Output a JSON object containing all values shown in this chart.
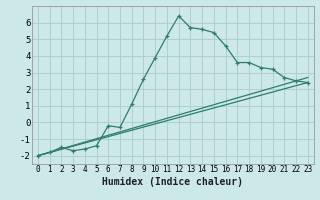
{
  "xlabel": "Humidex (Indice chaleur)",
  "background_color": "#cce8e8",
  "grid_color": "#aed0d0",
  "line_color": "#2e7d6e",
  "xlim": [
    -0.5,
    23.5
  ],
  "ylim": [
    -2.5,
    7.0
  ],
  "yticks": [
    -2,
    -1,
    0,
    1,
    2,
    3,
    4,
    5,
    6
  ],
  "xticks": [
    0,
    1,
    2,
    3,
    4,
    5,
    6,
    7,
    8,
    9,
    10,
    11,
    12,
    13,
    14,
    15,
    16,
    17,
    18,
    19,
    20,
    21,
    22,
    23
  ],
  "series": [
    [
      0,
      -2.0
    ],
    [
      1,
      -1.8
    ],
    [
      2,
      -1.5
    ],
    [
      3,
      -1.7
    ],
    [
      4,
      -1.6
    ],
    [
      5,
      -1.4
    ],
    [
      6,
      -0.2
    ],
    [
      7,
      -0.3
    ],
    [
      8,
      1.1
    ],
    [
      9,
      2.6
    ],
    [
      10,
      3.9
    ],
    [
      11,
      5.2
    ],
    [
      12,
      6.4
    ],
    [
      13,
      5.7
    ],
    [
      14,
      5.6
    ],
    [
      15,
      5.4
    ],
    [
      16,
      4.6
    ],
    [
      17,
      3.6
    ],
    [
      18,
      3.6
    ],
    [
      19,
      3.3
    ],
    [
      20,
      3.2
    ],
    [
      21,
      2.7
    ],
    [
      22,
      2.5
    ],
    [
      23,
      2.4
    ]
  ],
  "line2": [
    [
      0,
      -2.0
    ],
    [
      23,
      2.7
    ]
  ],
  "line3": [
    [
      0,
      -2.0
    ],
    [
      23,
      2.4
    ]
  ]
}
